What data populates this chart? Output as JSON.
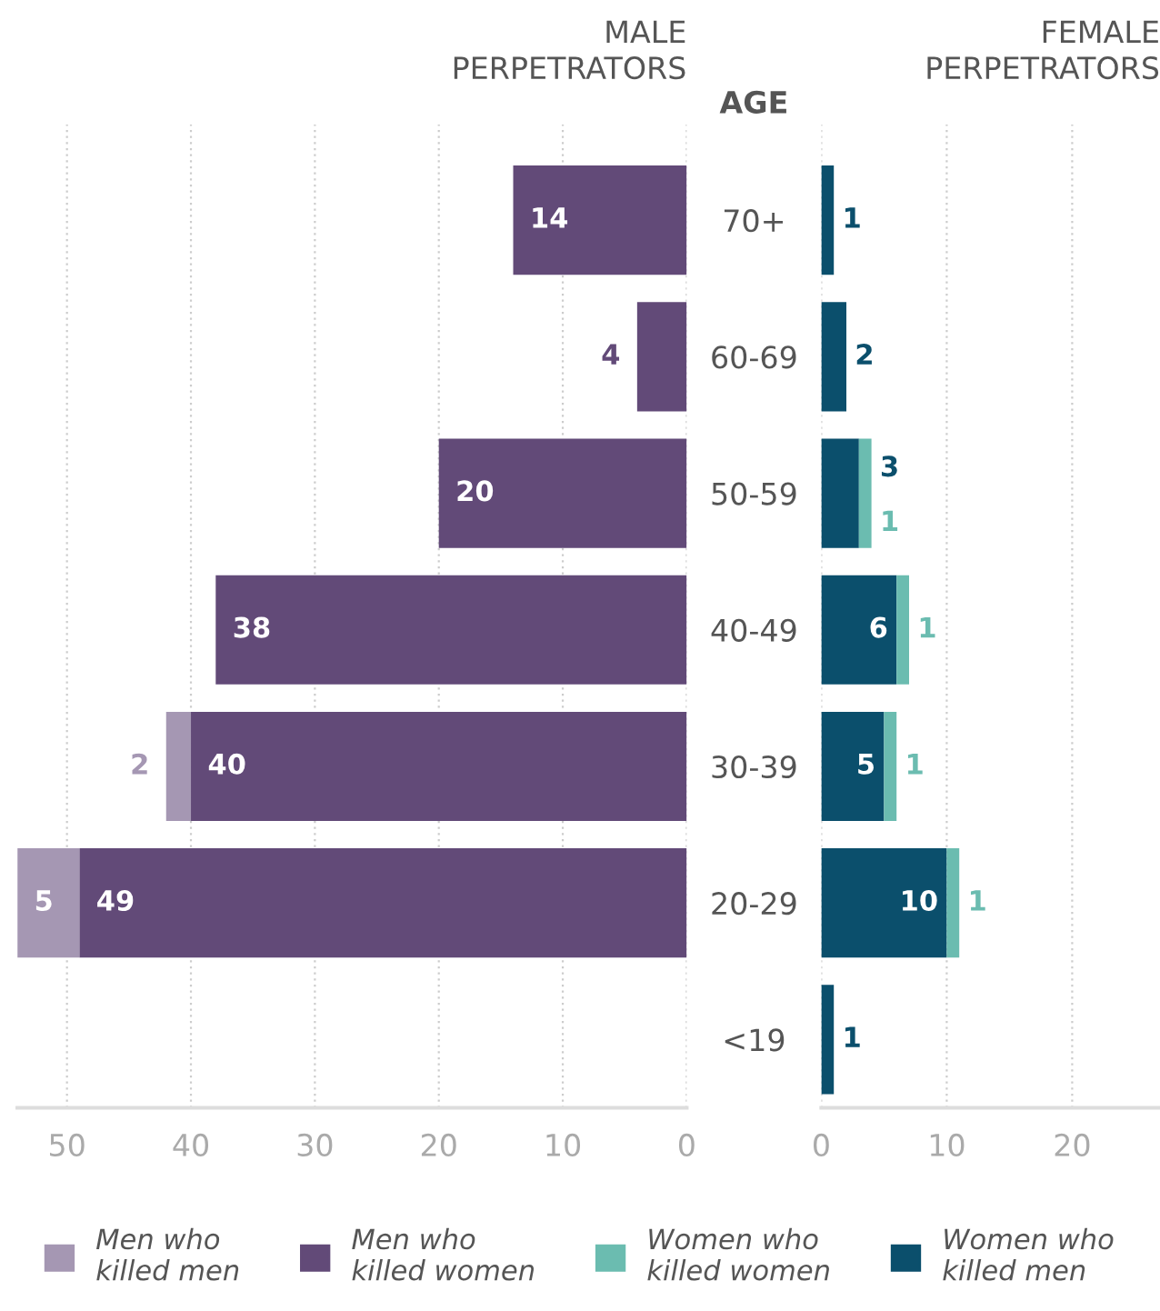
{
  "chart_data": [
    {
      "type": "bar",
      "orientation": "horizontal",
      "stacked": true,
      "title": "MALE\nPERPETRATORS",
      "ylabel": "AGE",
      "categories": [
        "70+",
        "60-69",
        "50-59",
        "40-49",
        "30-39",
        "20-29",
        "<19"
      ],
      "series": [
        {
          "name": "Men who killed women",
          "color": "#624a78",
          "values": [
            14,
            4,
            20,
            38,
            40,
            49,
            null
          ]
        },
        {
          "name": "Men who killed men",
          "color": "#a597b3",
          "values": [
            null,
            null,
            null,
            null,
            2,
            5,
            null
          ]
        }
      ],
      "xlim": [
        54,
        0
      ],
      "xticks": [
        50,
        40,
        30,
        20,
        10,
        0
      ],
      "grid": "x",
      "data_labels": true,
      "legend": "bottom"
    },
    {
      "type": "bar",
      "orientation": "horizontal",
      "stacked": true,
      "title": "FEMALE\nPERPETRATORS",
      "categories": [
        "70+",
        "60-69",
        "50-59",
        "40-49",
        "30-39",
        "20-29",
        "<19"
      ],
      "series": [
        {
          "name": "Women who killed men",
          "color": "#0b4f6c",
          "values": [
            1,
            2,
            3,
            6,
            5,
            10,
            1
          ]
        },
        {
          "name": "Women who killed women",
          "color": "#6bbcb0",
          "values": [
            null,
            null,
            1,
            1,
            1,
            1,
            null
          ]
        }
      ],
      "xlim": [
        0,
        27
      ],
      "xticks": [
        0,
        10,
        20
      ],
      "grid": "x",
      "data_labels": true,
      "tick_labels": "x",
      "legend": "bottom"
    }
  ]
}
